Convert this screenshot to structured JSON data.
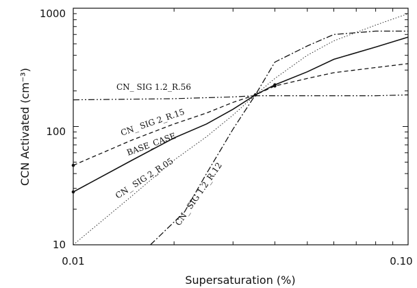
{
  "chart_data": {
    "type": "line",
    "title": "",
    "xlabel": "Supersaturation (%)",
    "ylabel": "CCN Activated (cm⁻³)",
    "xscale": "log",
    "yscale": "log",
    "xlim": [
      0.01,
      0.1
    ],
    "ylim": [
      10,
      1000
    ],
    "x_tick_labels": [
      {
        "value": 0.01,
        "label": "0.01"
      },
      {
        "value": 0.1,
        "label": "0.10"
      }
    ],
    "y_tick_labels": [
      {
        "value": 10,
        "label": "10"
      },
      {
        "value": 100,
        "label": "100"
      },
      {
        "value": 1000,
        "label": "1000"
      }
    ],
    "grid": false,
    "series": [
      {
        "name": "BASE_CASE",
        "style": "solid",
        "x": [
          0.01,
          0.015,
          0.02,
          0.025,
          0.03,
          0.035,
          0.04,
          0.05,
          0.06,
          0.08,
          0.1
        ],
        "y": [
          28,
          52,
          80,
          105,
          140,
          185,
          225,
          290,
          370,
          470,
          570
        ]
      },
      {
        "name": "CN_ SIG 2_R.15",
        "style": "dashed",
        "x": [
          0.01,
          0.015,
          0.02,
          0.025,
          0.03,
          0.035,
          0.04,
          0.05,
          0.06,
          0.08,
          0.1
        ],
        "y": [
          47,
          77,
          105,
          130,
          160,
          185,
          220,
          255,
          285,
          315,
          340
        ]
      },
      {
        "name": "CN_ SIG 2_R.05",
        "style": "dotted",
        "x": [
          0.01,
          0.015,
          0.02,
          0.025,
          0.03,
          0.035,
          0.04,
          0.05,
          0.06,
          0.08,
          0.1
        ],
        "y": [
          10,
          26,
          52,
          82,
          125,
          185,
          255,
          400,
          530,
          720,
          900
        ]
      },
      {
        "name": "CN_ SIG 1.2_R.12",
        "style": "dashdot",
        "x": [
          0.017,
          0.0215,
          0.025,
          0.03,
          0.035,
          0.04,
          0.05,
          0.06,
          0.08,
          0.1
        ],
        "y": [
          10,
          19,
          40,
          95,
          185,
          350,
          480,
          600,
          640,
          640
        ]
      },
      {
        "name": "CN_ SIG 1.2_R.56",
        "style": "dashdotdot",
        "x": [
          0.01,
          0.02,
          0.03,
          0.035,
          0.04,
          0.06,
          0.08,
          0.1
        ],
        "y": [
          168,
          172,
          178,
          182,
          182,
          182,
          182,
          185
        ]
      }
    ],
    "annotations": [
      {
        "series": 4,
        "text": "CN_ SIG 1.2_R.56"
      },
      {
        "series": 1,
        "text": "CN_ SIG 2_R.15"
      },
      {
        "series": 0,
        "text": "BASE_CASE"
      },
      {
        "series": 2,
        "text": "CN_ SIG 2_R.05"
      },
      {
        "series": 3,
        "text": "CN_ SIG 1.2_R.12"
      }
    ]
  }
}
